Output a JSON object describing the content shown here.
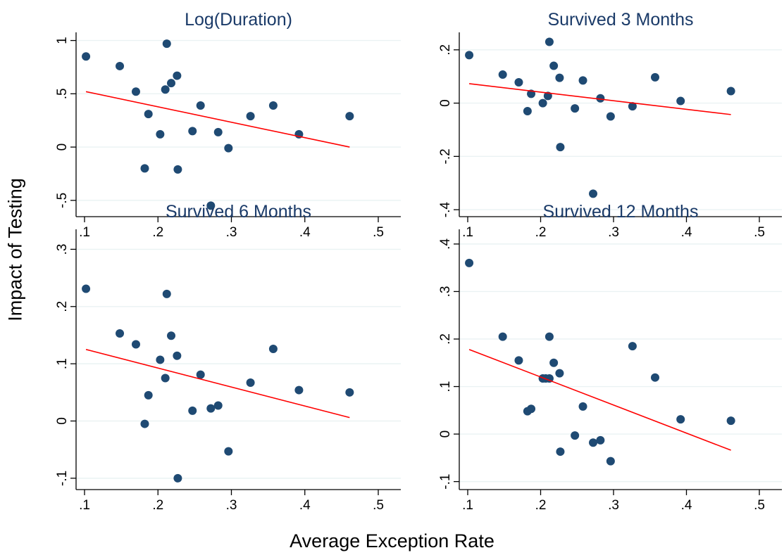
{
  "figure": {
    "ylabel": "Impact of Testing",
    "xlabel": "Average Exception Rate",
    "colors": {
      "points": "#1f4a73",
      "fit": "#ff0000",
      "grid": "#eaf2f3",
      "title": "#1a3a68"
    }
  },
  "chart_data": [
    {
      "type": "scatter",
      "title": "Log(Duration)",
      "xlim": [
        0.1,
        0.5
      ],
      "ylim": [
        -0.6,
        1.05
      ],
      "xticks": [
        0.1,
        0.2,
        0.3,
        0.4,
        0.5
      ],
      "xtick_labels": [
        ".1",
        ".2",
        ".3",
        ".4",
        ".5"
      ],
      "yticks": [
        -0.5,
        0,
        0.5,
        1
      ],
      "ytick_labels": [
        "-.5",
        "0",
        ".5",
        "1"
      ],
      "grid": true,
      "x": [
        0.102,
        0.148,
        0.17,
        0.182,
        0.187,
        0.203,
        0.21,
        0.212,
        0.218,
        0.226,
        0.227,
        0.247,
        0.258,
        0.272,
        0.282,
        0.296,
        0.326,
        0.357,
        0.392,
        0.461
      ],
      "y": [
        0.85,
        0.76,
        0.52,
        -0.2,
        0.31,
        0.12,
        0.54,
        0.97,
        0.6,
        0.67,
        -0.21,
        0.15,
        0.39,
        -0.55,
        0.14,
        -0.01,
        0.29,
        0.39,
        0.12,
        0.29
      ],
      "fit_line": {
        "x": [
          0.102,
          0.461
        ],
        "y": [
          0.52,
          0.0
        ]
      }
    },
    {
      "type": "scatter",
      "title": "Survived 3 Months",
      "xlim": [
        0.1,
        0.5
      ],
      "ylim": [
        -0.405,
        0.255
      ],
      "xticks": [
        0.1,
        0.2,
        0.3,
        0.4,
        0.5
      ],
      "xtick_labels": [
        ".1",
        ".2",
        ".3",
        ".4",
        ".5"
      ],
      "yticks": [
        -0.4,
        -0.2,
        0,
        0.2
      ],
      "ytick_labels": [
        "-.4",
        "-.2",
        "0",
        ".2"
      ],
      "grid": true,
      "x": [
        0.102,
        0.148,
        0.17,
        0.182,
        0.187,
        0.203,
        0.21,
        0.212,
        0.218,
        0.226,
        0.227,
        0.247,
        0.258,
        0.272,
        0.282,
        0.296,
        0.326,
        0.357,
        0.392,
        0.461
      ],
      "y": [
        0.18,
        0.107,
        0.078,
        -0.03,
        0.035,
        0.0,
        0.027,
        0.23,
        0.14,
        0.095,
        -0.165,
        -0.02,
        0.085,
        -0.34,
        0.018,
        -0.05,
        -0.012,
        0.097,
        0.008,
        0.045
      ],
      "fit_line": {
        "x": [
          0.102,
          0.461
        ],
        "y": [
          0.073,
          -0.043
        ]
      }
    },
    {
      "type": "scatter",
      "title": "Survived 6 Months",
      "xlim": [
        0.1,
        0.5
      ],
      "ylim": [
        -0.11,
        0.33
      ],
      "xticks": [
        0.1,
        0.2,
        0.3,
        0.4,
        0.5
      ],
      "xtick_labels": [
        ".1",
        ".2",
        ".3",
        ".4",
        ".5"
      ],
      "yticks": [
        -0.1,
        0,
        0.1,
        0.2,
        0.3
      ],
      "ytick_labels": [
        "-.1",
        "0",
        ".1",
        ".2",
        ".3"
      ],
      "grid": true,
      "x": [
        0.102,
        0.148,
        0.17,
        0.182,
        0.187,
        0.203,
        0.21,
        0.212,
        0.218,
        0.226,
        0.227,
        0.247,
        0.258,
        0.272,
        0.282,
        0.296,
        0.326,
        0.357,
        0.392,
        0.461
      ],
      "y": [
        0.231,
        0.153,
        0.134,
        -0.005,
        0.045,
        0.107,
        0.075,
        0.222,
        0.149,
        0.114,
        -0.1,
        0.018,
        0.081,
        0.022,
        0.027,
        -0.053,
        0.067,
        0.126,
        0.054,
        0.05
      ],
      "fit_line": {
        "x": [
          0.102,
          0.461
        ],
        "y": [
          0.125,
          0.006
        ]
      }
    },
    {
      "type": "scatter",
      "title": "Survived 12 Months",
      "xlim": [
        0.1,
        0.5
      ],
      "ylim": [
        -0.105,
        0.425
      ],
      "xticks": [
        0.1,
        0.2,
        0.3,
        0.4,
        0.5
      ],
      "xtick_labels": [
        ".1",
        ".2",
        ".3",
        ".4",
        ".5"
      ],
      "yticks": [
        -0.1,
        0,
        0.1,
        0.2,
        0.3,
        0.4
      ],
      "ytick_labels": [
        "-.1",
        "0",
        ".1",
        ".2",
        ".3",
        ".4"
      ],
      "grid": true,
      "x": [
        0.102,
        0.148,
        0.17,
        0.182,
        0.187,
        0.203,
        0.207,
        0.212,
        0.212,
        0.218,
        0.226,
        0.227,
        0.247,
        0.258,
        0.272,
        0.282,
        0.296,
        0.326,
        0.357,
        0.392,
        0.461
      ],
      "y": [
        0.36,
        0.205,
        0.155,
        0.048,
        0.053,
        0.117,
        0.117,
        0.205,
        0.117,
        0.15,
        0.128,
        -0.037,
        -0.003,
        0.058,
        -0.018,
        -0.013,
        -0.057,
        0.185,
        0.119,
        0.031,
        0.028
      ],
      "fit_line": {
        "x": [
          0.102,
          0.461
        ],
        "y": [
          0.178,
          -0.034
        ]
      }
    }
  ]
}
